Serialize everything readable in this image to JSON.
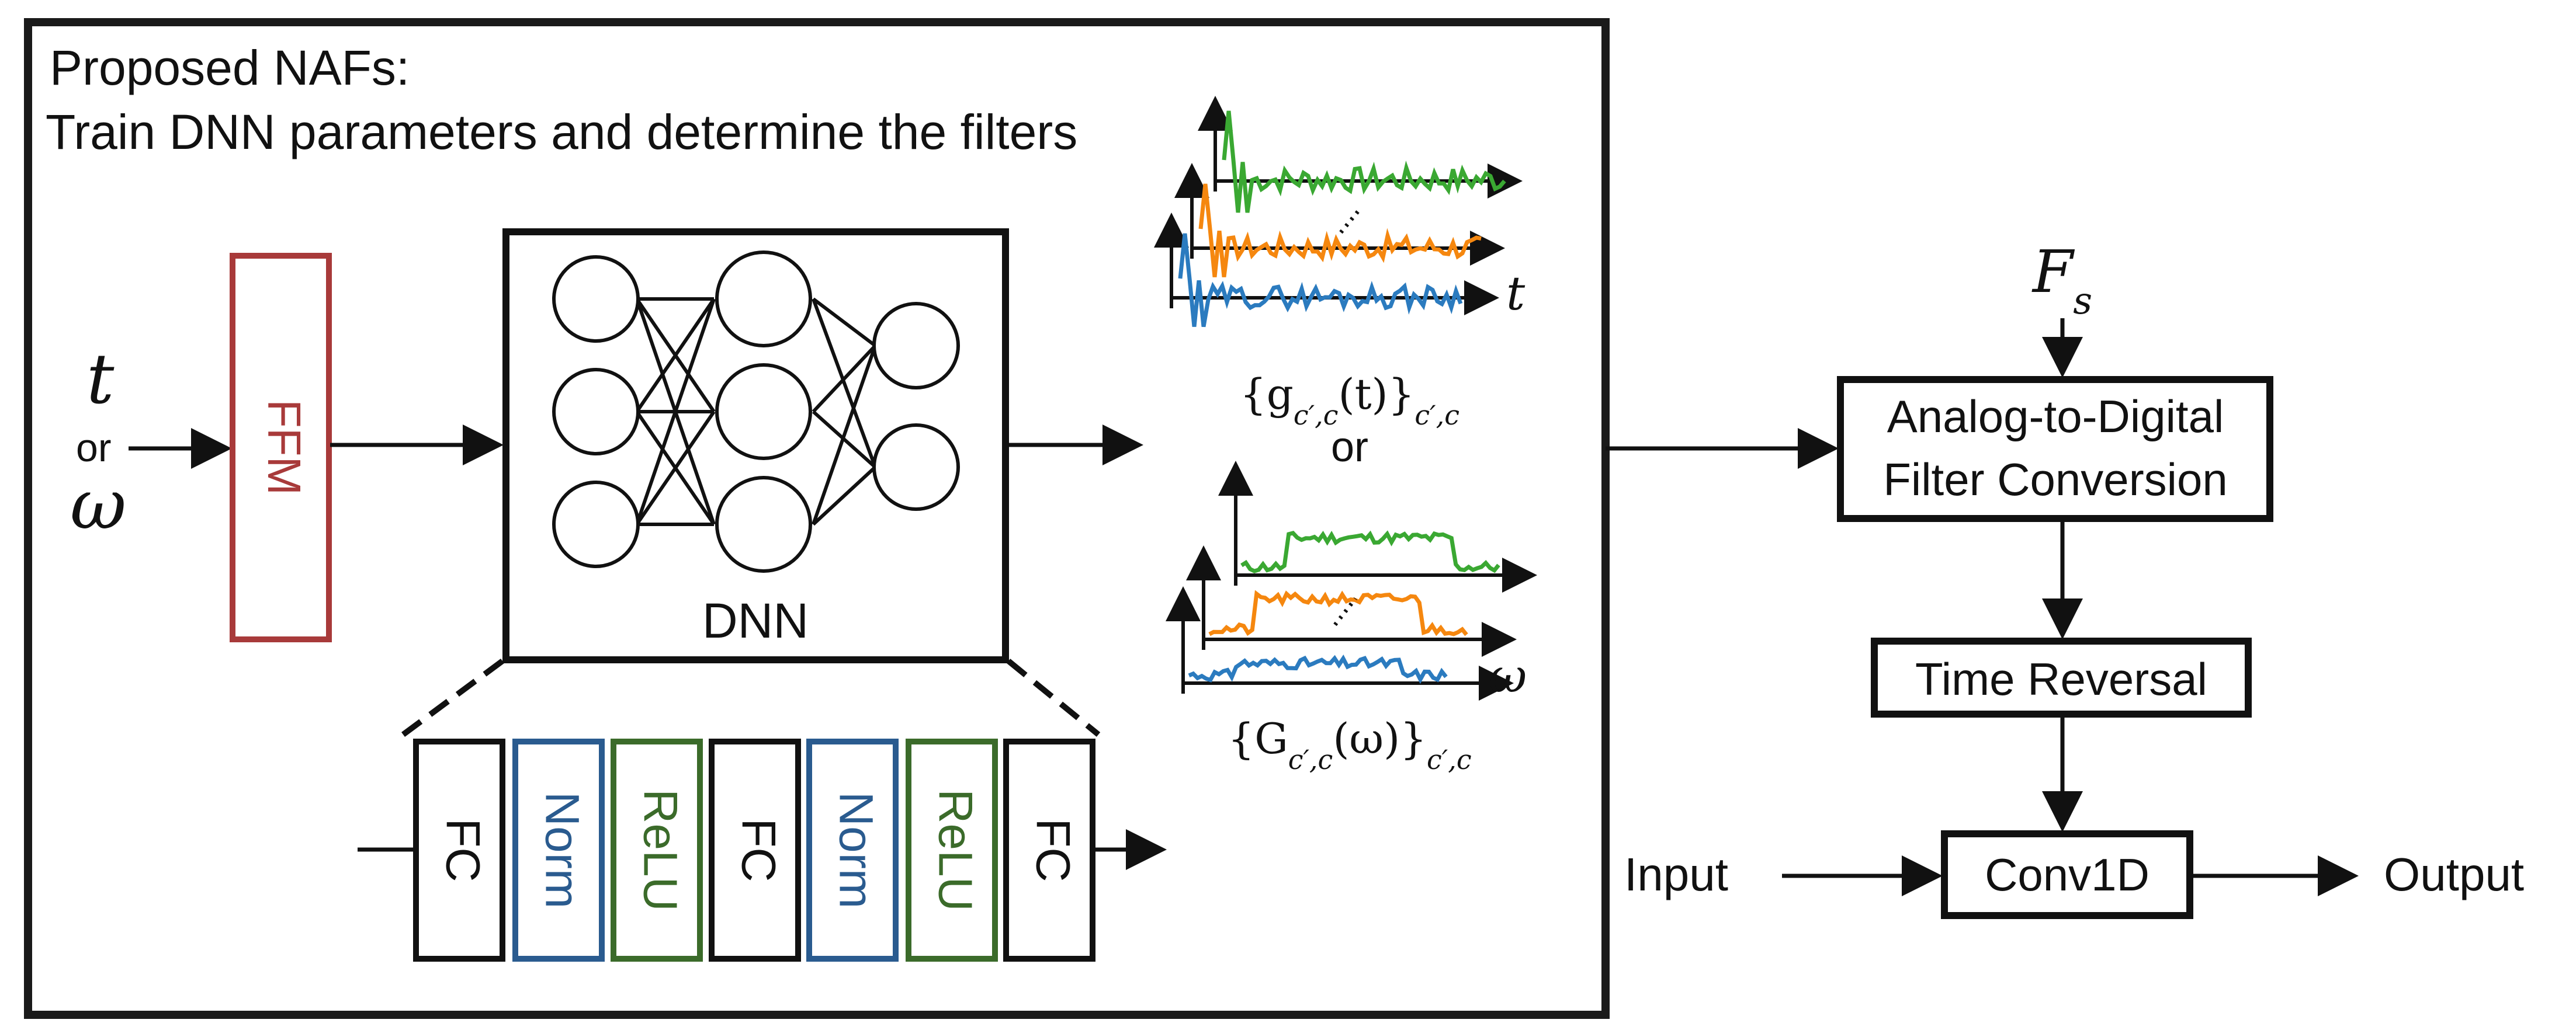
{
  "panel": {
    "title_line1": "Proposed NAFs:",
    "title_line2": "Train DNN parameters and determine the filters"
  },
  "inputs": {
    "t": "t",
    "or": "or",
    "omega": "ω"
  },
  "ffm_label": "FFM",
  "dnn_label": "DNN",
  "layers": [
    "FC",
    "Norm",
    "ReLU",
    "FC",
    "Norm",
    "ReLU",
    "FC"
  ],
  "time_plot": {
    "axis_label": "t",
    "caption_main": "{g",
    "caption_sub": "c′,c",
    "caption_arg": "(t)}",
    "caption_tail": "c′,c"
  },
  "or_between": "or",
  "freq_plot": {
    "axis_label": "ω",
    "caption_main": "{G",
    "caption_sub": "c′,c",
    "caption_arg": "(ω)}",
    "caption_tail": "c′,c"
  },
  "fs_label": "F",
  "fs_sub": "s",
  "blocks": {
    "adc_line1": "Analog-to-Digital",
    "adc_line2": "Filter Conversion",
    "time_reversal": "Time Reversal",
    "conv1d": "Conv1D"
  },
  "io": {
    "input": "Input",
    "output": "Output"
  },
  "colors": {
    "ffm": "#a83a3a",
    "norm": "#2a5b8f",
    "relu": "#3b6b2a",
    "series_green": "#3aa832",
    "series_orange": "#f5870f",
    "series_blue": "#2b7bbf"
  }
}
